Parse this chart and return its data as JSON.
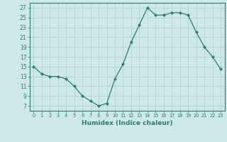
{
  "humidex": [
    15,
    13.5,
    13,
    13,
    12.5,
    11,
    9,
    8,
    7,
    7.5,
    12.5,
    15.5,
    20,
    23.5,
    27,
    25.5,
    25.5,
    26,
    26,
    25.5,
    22,
    19,
    17,
    14.5
  ],
  "xlabel": "Humidex (Indice chaleur)",
  "bg_color": "#cce8e8",
  "grid_color": "#b0cccc",
  "line_color": "#2e7d6e",
  "marker_color": "#2e7d6e",
  "yticks": [
    7,
    9,
    11,
    13,
    15,
    17,
    19,
    21,
    23,
    25,
    27
  ],
  "xticks": [
    0,
    1,
    2,
    3,
    4,
    5,
    6,
    7,
    8,
    9,
    10,
    11,
    12,
    13,
    14,
    15,
    16,
    17,
    18,
    19,
    20,
    21,
    22,
    23
  ],
  "xlim": [
    -0.5,
    23.5
  ],
  "ylim": [
    6,
    28
  ]
}
